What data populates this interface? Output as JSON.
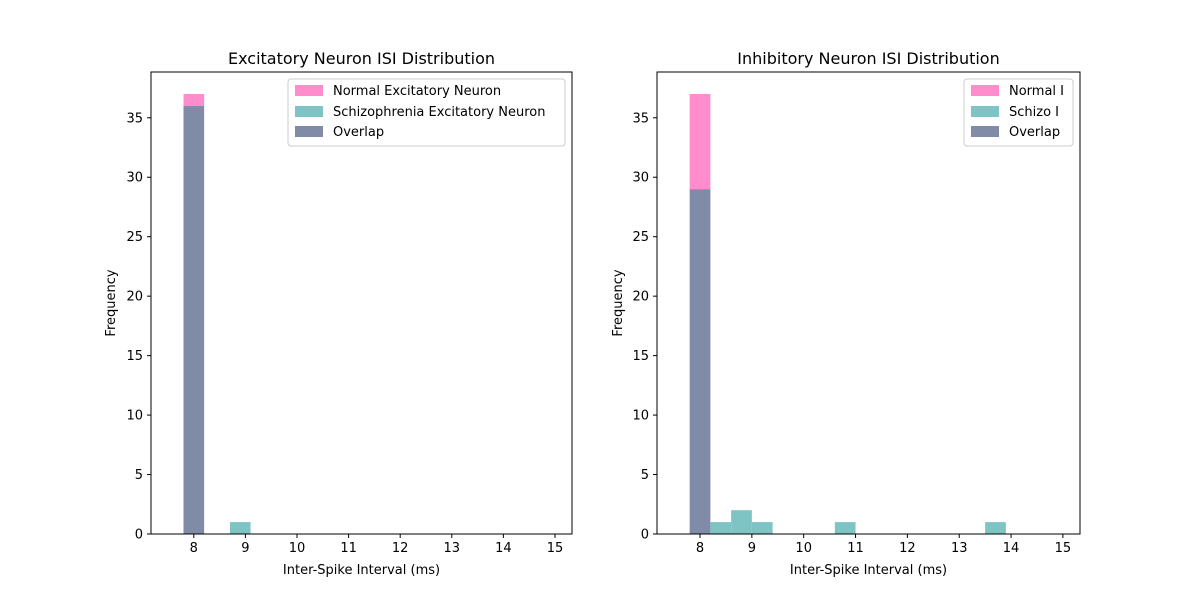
{
  "colors": {
    "normal": "#ff8ccc",
    "schizo": "#7ec4c4",
    "overlap": "#808ba8"
  },
  "chart_data": [
    {
      "type": "bar",
      "title": "Excitatory Neuron ISI Distribution",
      "xlabel": "Inter-Spike Interval (ms)",
      "ylabel": "Frequency",
      "xlim": [
        7.17,
        15.33
      ],
      "ylim": [
        0,
        38.85
      ],
      "x_ticks": [
        8,
        9,
        10,
        11,
        12,
        13,
        14,
        15
      ],
      "y_ticks": [
        0,
        5,
        10,
        15,
        20,
        25,
        30,
        35
      ],
      "bin_width": 0.4,
      "legend": {
        "position": "top-right",
        "entries": [
          "Normal Excitatory Neuron",
          "Schizophrenia Excitatory Neuron",
          "Overlap"
        ]
      },
      "normal_bins": [
        {
          "x0": 7.8,
          "count": 37
        }
      ],
      "schizo_bins": [
        {
          "x0": 7.8,
          "count": 36
        },
        {
          "x0": 8.7,
          "count": 1
        }
      ]
    },
    {
      "type": "bar",
      "title": "Inhibitory Neuron ISI Distribution",
      "xlabel": "Inter-Spike Interval (ms)",
      "ylabel": "Frequency",
      "xlim": [
        7.17,
        15.33
      ],
      "ylim": [
        0,
        38.85
      ],
      "x_ticks": [
        8,
        9,
        10,
        11,
        12,
        13,
        14,
        15
      ],
      "y_ticks": [
        0,
        5,
        10,
        15,
        20,
        25,
        30,
        35
      ],
      "bin_width": 0.4,
      "legend": {
        "position": "top-right",
        "entries": [
          "Normal I",
          "Schizo I",
          "Overlap"
        ]
      },
      "normal_bins": [
        {
          "x0": 7.8,
          "count": 37
        }
      ],
      "schizo_bins": [
        {
          "x0": 7.8,
          "count": 29
        },
        {
          "x0": 8.2,
          "count": 1
        },
        {
          "x0": 8.6,
          "count": 2
        },
        {
          "x0": 9.0,
          "count": 1
        },
        {
          "x0": 10.6,
          "count": 1
        },
        {
          "x0": 13.5,
          "count": 1
        }
      ]
    }
  ]
}
